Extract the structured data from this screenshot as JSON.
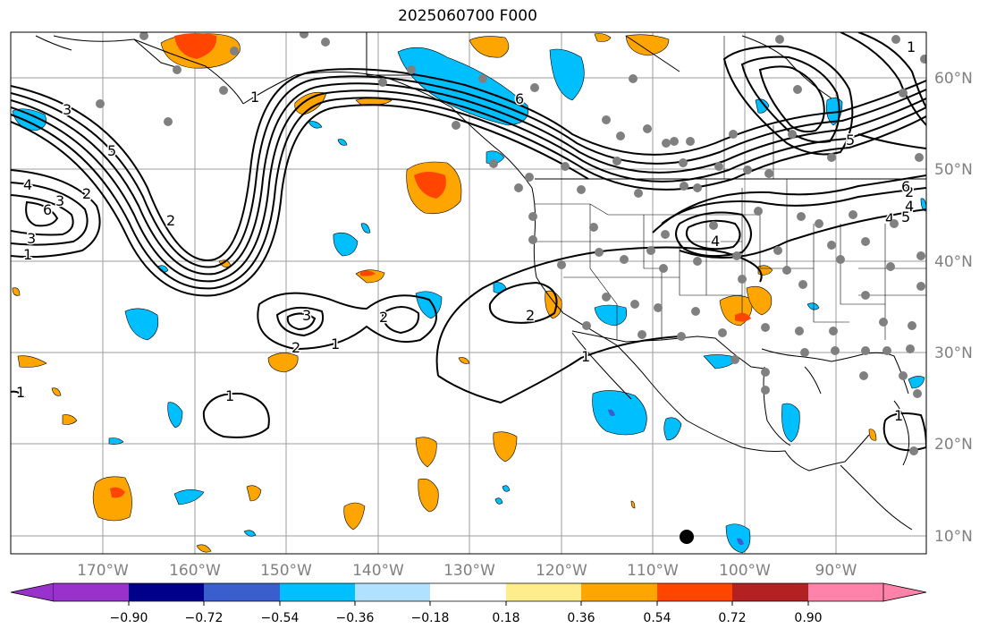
{
  "title": "2025060700 F000",
  "lon_labels": [
    "170°W",
    "160°W",
    "150°W",
    "140°W",
    "130°W",
    "120°W",
    "110°W",
    "100°W",
    "90°W"
  ],
  "lat_labels": [
    "60°N",
    "50°N",
    "40°N",
    "30°N",
    "20°N",
    "10°N"
  ],
  "colorbar": {
    "ticks": [
      "−0.90",
      "−0.72",
      "−0.54",
      "−0.36",
      "−0.18",
      "0.18",
      "0.36",
      "0.54",
      "0.72",
      "0.90"
    ],
    "colors": [
      "#9932cc",
      "#00008b",
      "#3a5fcd",
      "#00bfff",
      "#b0e2ff",
      "#ffffff",
      "#ffec8b",
      "#ffa500",
      "#ff4500",
      "#b22222",
      "#ff82ab"
    ]
  },
  "contour_labels": [
    "6",
    "5",
    "4",
    "3",
    "2",
    "2",
    "1",
    "1",
    "1",
    "2",
    "3",
    "4",
    "5",
    "6",
    "3",
    "2",
    "1",
    "1",
    "1",
    "2",
    "1",
    "3",
    "2",
    "4",
    "5",
    "6",
    "4",
    "1"
  ],
  "colors": {
    "grid": "#9e9e9e",
    "axis_text": "#808080",
    "station": "#808080",
    "warm": "#ffa500",
    "hot": "#ff4500",
    "cold": "#00bfff",
    "deep_cold": "#3a5fcd"
  }
}
